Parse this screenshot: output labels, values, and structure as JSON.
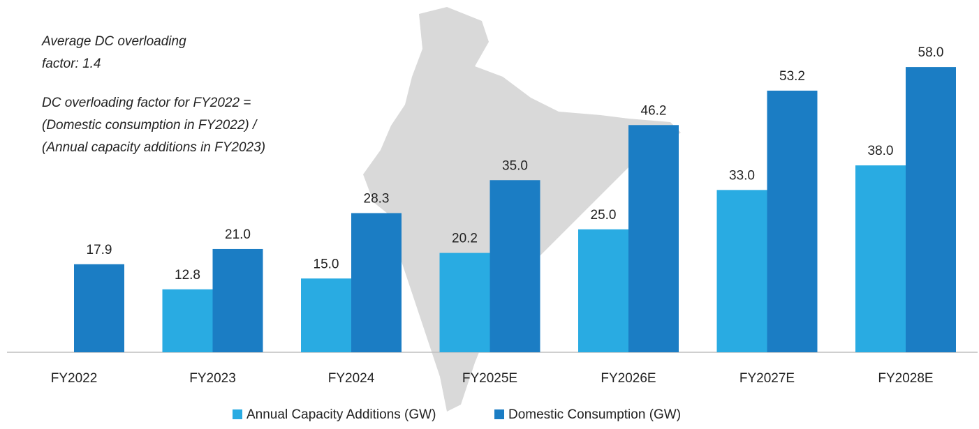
{
  "chart_data": {
    "type": "bar",
    "annotations": [
      "Average DC overloading",
      "factor: 1.4",
      "DC overloading factor for FY2022 =",
      "(Domestic consumption in FY2022) /",
      "(Annual capacity additions in FY2023)"
    ],
    "categories": [
      "FY2022",
      "FY2023",
      "FY2024",
      "FY2025E",
      "FY2026E",
      "FY2027E",
      "FY2028E"
    ],
    "series": [
      {
        "name": "Annual Capacity Additions (GW)",
        "color": "#29abe2",
        "values": [
          null,
          12.8,
          15.0,
          20.2,
          25.0,
          33.0,
          38.0
        ],
        "value_labels": [
          null,
          "12.8",
          "15.0",
          "20.2",
          "25.0",
          "33.0",
          "38.0"
        ]
      },
      {
        "name": "Domestic Consumption (GW)",
        "color": "#1b7dc4",
        "values": [
          17.9,
          21.0,
          28.3,
          35.0,
          46.2,
          53.2,
          58.0
        ],
        "value_labels": [
          "17.9",
          "21.0",
          "28.3",
          "35.0",
          "46.2",
          "53.2",
          "58.0"
        ]
      }
    ],
    "ylim": [
      0,
      60
    ],
    "legend": "bottom"
  }
}
